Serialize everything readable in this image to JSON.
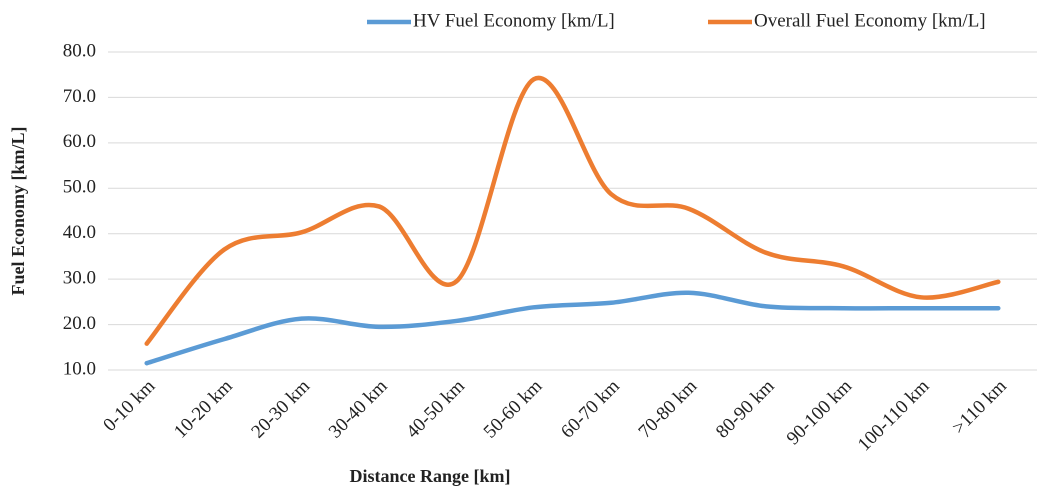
{
  "chart_data": {
    "type": "line",
    "x_label": "Distance Range [km]",
    "y_label": "Fuel Economy [km/L]",
    "categories": [
      "0-10 km",
      "10-20 km",
      "20-30 km",
      "30-40 km",
      "40-50 km",
      "50-60 km",
      "60-70 km",
      "70-80 km",
      "80-90 km",
      "90-100 km",
      "100-110 km",
      ">110 km"
    ],
    "series": [
      {
        "name": "HV Fuel Economy  [km/L]",
        "color": "#5b9bd5",
        "values": [
          11.5,
          16.8,
          21.3,
          19.5,
          20.8,
          23.8,
          24.8,
          27.0,
          24.0,
          23.6,
          23.6,
          23.6
        ]
      },
      {
        "name": "Overall Fuel Economy  [km/L]",
        "color": "#ed7d31",
        "values": [
          15.8,
          36.5,
          40.3,
          46.0,
          29.5,
          74.0,
          48.7,
          45.5,
          35.8,
          32.8,
          26.0,
          29.4
        ]
      }
    ],
    "ylim": [
      10,
      80
    ],
    "yticks": [
      {
        "value": 10,
        "label": "10.0"
      },
      {
        "value": 20,
        "label": "20.0"
      },
      {
        "value": 30,
        "label": "30.0"
      },
      {
        "value": 40,
        "label": "40.0"
      },
      {
        "value": 50,
        "label": "50.0"
      },
      {
        "value": 60,
        "label": "60.0"
      },
      {
        "value": 70,
        "label": "70.0"
      },
      {
        "value": 80,
        "label": "80.0"
      }
    ],
    "grid": true,
    "smooth": true,
    "legend": "top-right"
  }
}
